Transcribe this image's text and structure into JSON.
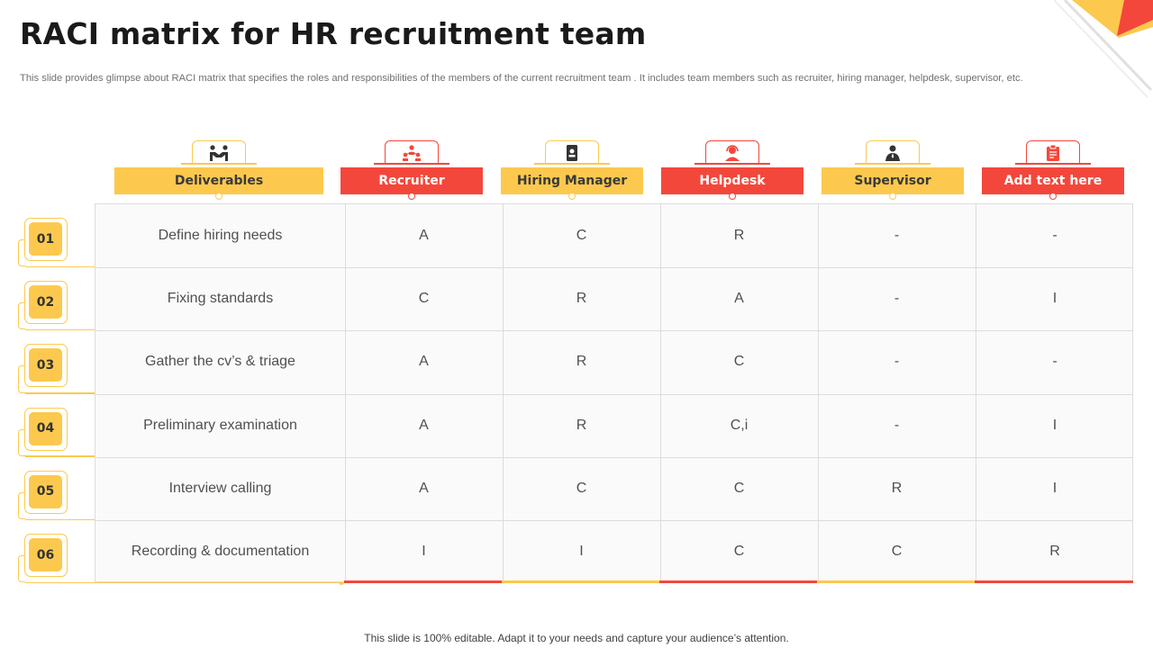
{
  "title": "RACI matrix for HR recruitment team",
  "subtitle": "This slide provides glimpse about RACI matrix that specifies the roles and responsibilities of the members of the current recruitment team . It includes team members such as recruiter, hiring manager, helpdesk, supervisor, etc.",
  "footer": "This slide is 100% editable. Adapt it to your needs and capture your audience’s attention.",
  "colors": {
    "yellow": "#fcc94e",
    "red": "#f4473b",
    "grid": "#dcdcdc"
  },
  "columns": [
    {
      "label": "Deliverables",
      "color": "yellow",
      "icon": "handshake-icon"
    },
    {
      "label": "Recruiter",
      "color": "red",
      "icon": "team-network-icon"
    },
    {
      "label": "Hiring Manager",
      "color": "yellow",
      "icon": "id-badge-icon"
    },
    {
      "label": "Helpdesk",
      "color": "red",
      "icon": "support-agent-icon"
    },
    {
      "label": "Supervisor",
      "color": "yellow",
      "icon": "person-tie-icon"
    },
    {
      "label": "Add text here",
      "color": "red",
      "icon": "clipboard-icon"
    }
  ],
  "rows": [
    {
      "num": "01",
      "deliverable": "Define hiring needs",
      "values": [
        "A",
        "C",
        "R",
        "-",
        "-"
      ]
    },
    {
      "num": "02",
      "deliverable": "Fixing standards",
      "values": [
        "C",
        "R",
        "A",
        "-",
        "I"
      ]
    },
    {
      "num": "03",
      "deliverable": "Gather the cv’s & triage",
      "values": [
        "A",
        "R",
        "C",
        "-",
        "-"
      ]
    },
    {
      "num": "04",
      "deliverable": "Preliminary examination",
      "values": [
        "A",
        "R",
        "C,i",
        "-",
        "I"
      ]
    },
    {
      "num": "05",
      "deliverable": "Interview  calling",
      "values": [
        "A",
        "C",
        "C",
        "R",
        "I"
      ]
    },
    {
      "num": "06",
      "deliverable": "Recording & documentation",
      "values": [
        "I",
        "I",
        "C",
        "C",
        "R"
      ]
    }
  ]
}
